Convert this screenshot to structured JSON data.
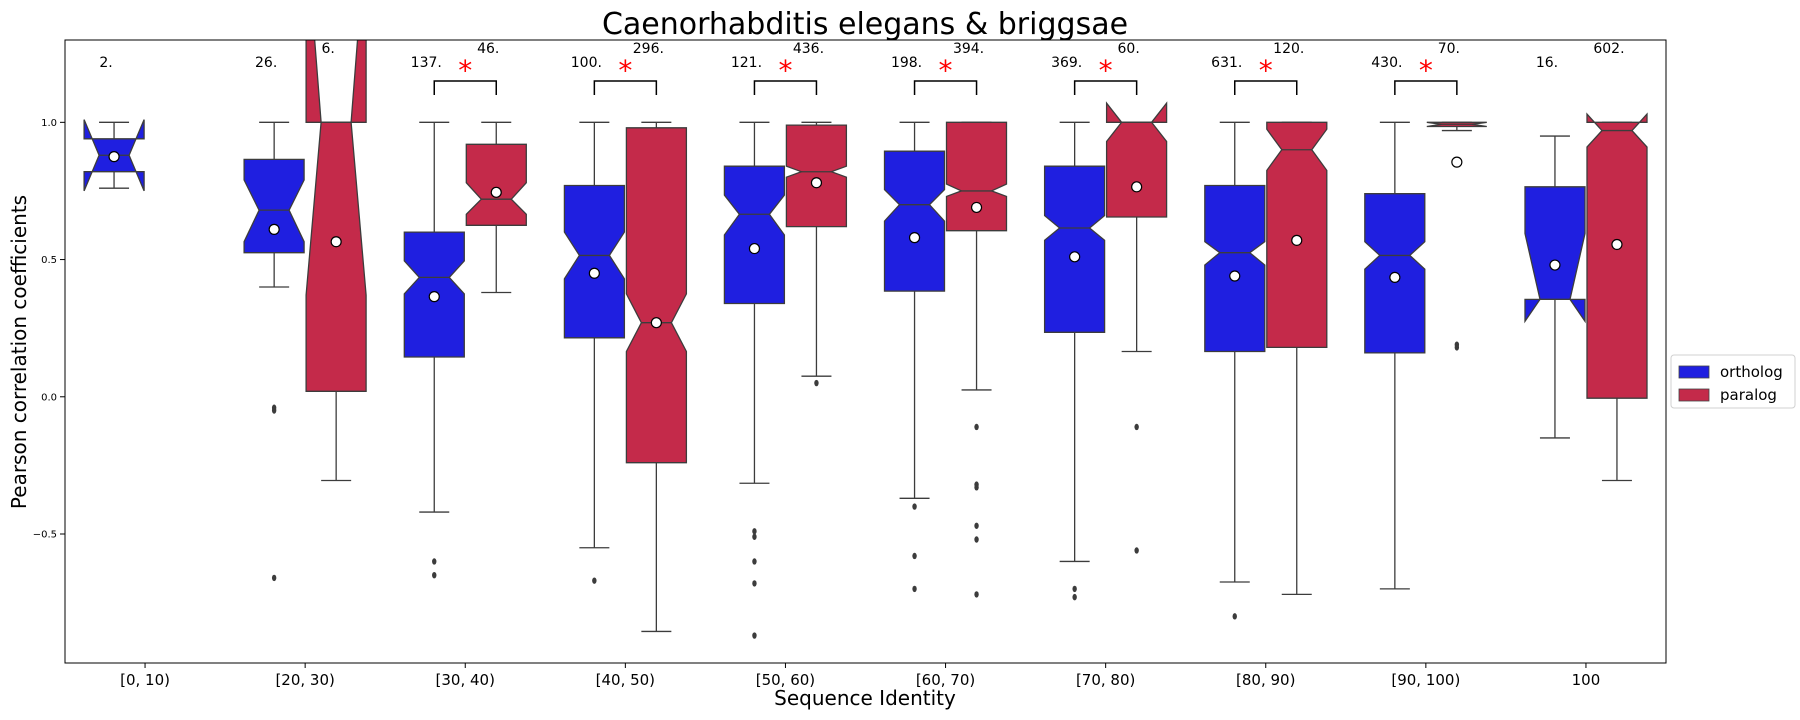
{
  "chart_data": {
    "type": "boxplot",
    "title": "Caenorhabditis elegans & briggsae",
    "xlabel": "Sequence Identity",
    "ylabel": "Pearson correlation coefficients",
    "ylim": [
      -0.97,
      1.3
    ],
    "yticks": [
      {
        "value": 1.0,
        "label": "1.0"
      },
      {
        "value": 0.5,
        "label": "0.5"
      },
      {
        "value": 0.0,
        "label": "0.0"
      },
      {
        "value": -0.5,
        "label": "−0.5"
      }
    ],
    "grid": false,
    "legend_position": "right",
    "categories": [
      "[0, 10)",
      "[20, 30)",
      "[30, 40)",
      "[40, 50)",
      "[50, 60)",
      "[60, 70)",
      "[70, 80)",
      "[80, 90)",
      "[90, 100)",
      "100"
    ],
    "series": [
      {
        "name": "ortholog",
        "color": "#1f1fe0",
        "boxes": [
          {
            "count": "2.",
            "q1": 0.82,
            "median": 0.88,
            "q3": 0.94,
            "notch_low": 0.75,
            "notch_high": 1.01,
            "whisker_low": 0.76,
            "whisker_high": 1.0,
            "mean": 0.875,
            "outliers": []
          },
          {
            "count": "26.",
            "q1": 0.525,
            "median": 0.68,
            "q3": 0.865,
            "notch_low": 0.565,
            "notch_high": 0.79,
            "whisker_low": 0.4,
            "whisker_high": 1.0,
            "mean": 0.61,
            "outliers": [
              -0.04,
              -0.05,
              -0.66
            ]
          },
          {
            "count": "137.",
            "q1": 0.145,
            "median": 0.435,
            "q3": 0.6,
            "notch_low": 0.375,
            "notch_high": 0.495,
            "whisker_low": -0.42,
            "whisker_high": 1.0,
            "mean": 0.365,
            "outliers": [
              -0.6,
              -0.65
            ]
          },
          {
            "count": "100.",
            "q1": 0.215,
            "median": 0.515,
            "q3": 0.77,
            "notch_low": 0.43,
            "notch_high": 0.6,
            "whisker_low": -0.55,
            "whisker_high": 1.0,
            "mean": 0.45,
            "outliers": [
              -0.67
            ]
          },
          {
            "count": "121.",
            "q1": 0.34,
            "median": 0.665,
            "q3": 0.84,
            "notch_low": 0.59,
            "notch_high": 0.735,
            "whisker_low": -0.315,
            "whisker_high": 1.0,
            "mean": 0.54,
            "outliers": [
              -0.49,
              -0.51,
              -0.6,
              -0.68,
              -0.87
            ]
          },
          {
            "count": "198.",
            "q1": 0.385,
            "median": 0.7,
            "q3": 0.895,
            "notch_low": 0.64,
            "notch_high": 0.755,
            "whisker_low": -0.37,
            "whisker_high": 1.0,
            "mean": 0.58,
            "outliers": [
              -0.4,
              -0.58,
              -0.7
            ]
          },
          {
            "count": "369.",
            "q1": 0.235,
            "median": 0.615,
            "q3": 0.84,
            "notch_low": 0.57,
            "notch_high": 0.66,
            "whisker_low": -0.6,
            "whisker_high": 1.0,
            "mean": 0.51,
            "outliers": [
              -0.7,
              -0.73
            ]
          },
          {
            "count": "631.",
            "q1": 0.165,
            "median": 0.525,
            "q3": 0.77,
            "notch_low": 0.48,
            "notch_high": 0.565,
            "whisker_low": -0.675,
            "whisker_high": 1.0,
            "mean": 0.44,
            "outliers": [
              -0.8
            ]
          },
          {
            "count": "430.",
            "q1": 0.16,
            "median": 0.515,
            "q3": 0.74,
            "notch_low": 0.465,
            "notch_high": 0.565,
            "whisker_low": -0.7,
            "whisker_high": 1.0,
            "mean": 0.435,
            "outliers": []
          },
          {
            "count": "16.",
            "q1": 0.355,
            "median": 0.355,
            "q3": 0.765,
            "notch_low": 0.275,
            "notch_high": 0.595,
            "whisker_low": -0.15,
            "whisker_high": 0.95,
            "mean": 0.48,
            "outliers": []
          }
        ]
      },
      {
        "name": "paralog",
        "color": "#c42a4a",
        "boxes": [
          null,
          {
            "count": "6.",
            "q1": 0.02,
            "median": 1.0,
            "q3": 1.0,
            "notch_low": 0.37,
            "notch_high": 1.7,
            "whisker_low": -0.305,
            "whisker_high": 1.0,
            "mean": 0.565,
            "outliers": []
          },
          {
            "count": "46.",
            "q1": 0.625,
            "median": 0.72,
            "q3": 0.92,
            "notch_low": 0.665,
            "notch_high": 0.78,
            "whisker_low": 0.38,
            "whisker_high": 1.0,
            "mean": 0.745,
            "outliers": []
          },
          {
            "count": "296.",
            "q1": -0.24,
            "median": 0.27,
            "q3": 0.98,
            "notch_low": 0.165,
            "notch_high": 0.375,
            "whisker_low": -0.855,
            "whisker_high": 1.0,
            "mean": 0.27,
            "outliers": []
          },
          {
            "count": "436.",
            "q1": 0.62,
            "median": 0.82,
            "q3": 0.99,
            "notch_low": 0.8,
            "notch_high": 0.84,
            "whisker_low": 0.075,
            "whisker_high": 1.0,
            "mean": 0.78,
            "outliers": [
              0.05
            ]
          },
          {
            "count": "394.",
            "q1": 0.605,
            "median": 0.75,
            "q3": 1.0,
            "notch_low": 0.73,
            "notch_high": 0.775,
            "whisker_low": 0.025,
            "whisker_high": 1.0,
            "mean": 0.69,
            "outliers": [
              -0.11,
              -0.32,
              -0.33,
              -0.47,
              -0.52,
              -0.72
            ]
          },
          {
            "count": "60.",
            "q1": 0.655,
            "median": 1.0,
            "q3": 1.0,
            "notch_low": 0.93,
            "notch_high": 1.07,
            "whisker_low": 0.165,
            "whisker_high": 1.0,
            "mean": 0.765,
            "outliers": [
              -0.11,
              -0.56
            ]
          },
          {
            "count": "120.",
            "q1": 0.18,
            "median": 0.9,
            "q3": 1.0,
            "notch_low": 0.825,
            "notch_high": 0.975,
            "whisker_low": -0.72,
            "whisker_high": 1.0,
            "mean": 0.57,
            "outliers": []
          },
          {
            "count": "70.",
            "q1": 0.985,
            "median": 0.993,
            "q3": 1.0,
            "notch_low": 0.985,
            "notch_high": 1.0,
            "whisker_low": 0.97,
            "whisker_high": 1.0,
            "mean": 0.855,
            "outliers": [
              0.18,
              0.19
            ]
          },
          {
            "count": "602.",
            "q1": -0.005,
            "median": 0.97,
            "q3": 1.0,
            "notch_low": 0.91,
            "notch_high": 1.03,
            "whisker_low": -0.305,
            "whisker_high": 1.0,
            "mean": 0.555,
            "outliers": []
          }
        ]
      }
    ],
    "significance": [
      {
        "category": "[30, 40)",
        "symbol": "*"
      },
      {
        "category": "[40, 50)",
        "symbol": "*"
      },
      {
        "category": "[50, 60)",
        "symbol": "*"
      },
      {
        "category": "[60, 70)",
        "symbol": "*"
      },
      {
        "category": "[70, 80)",
        "symbol": "*"
      },
      {
        "category": "[80, 90)",
        "symbol": "*"
      },
      {
        "category": "[90, 100)",
        "symbol": "*"
      }
    ],
    "significance_color": "#ff0000"
  }
}
